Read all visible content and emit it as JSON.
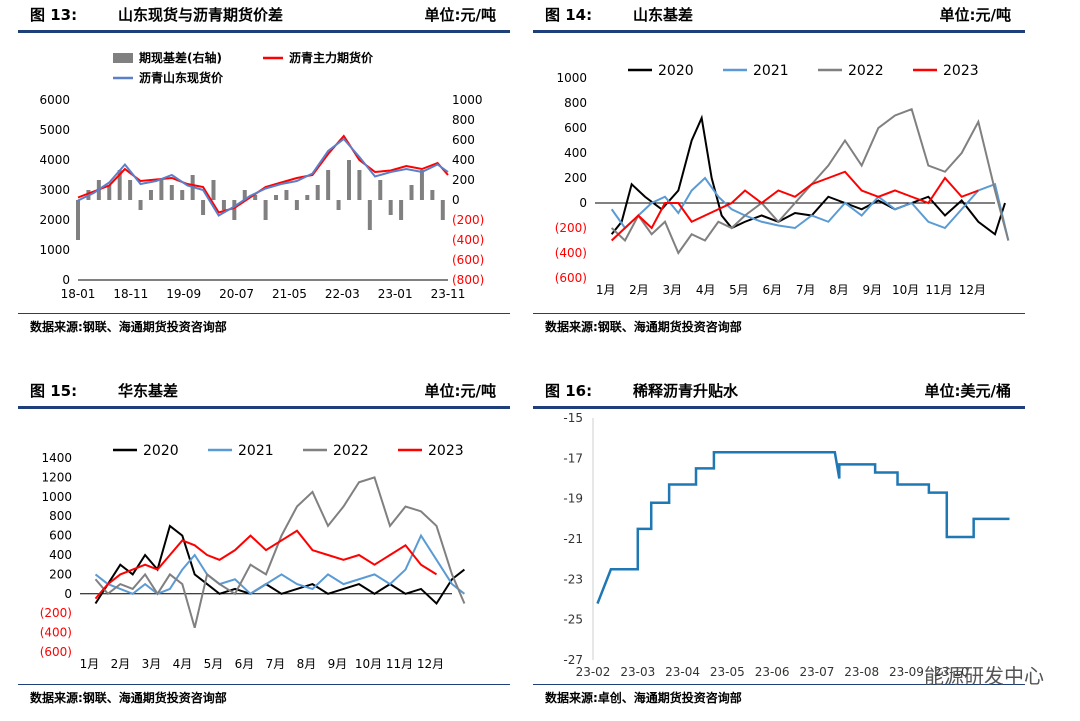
{
  "charts": [
    {
      "id": "c13",
      "fig": "图 13:",
      "title": "山东现货与沥青期货价差",
      "unit": "单位:元/吨",
      "source": "数据来源:钢联、海通期货投资咨询部",
      "chart_data": {
        "type": "line",
        "legend": [
          {
            "name": "期现基差(右轴)",
            "color": "#808080",
            "kind": "bar"
          },
          {
            "name": "沥青主力期货价",
            "color": "#ff0000",
            "kind": "line"
          },
          {
            "name": "沥青山东现货价",
            "color": "#5b7fc9",
            "kind": "line"
          }
        ],
        "x_ticks": [
          "18-01",
          "18-11",
          "19-09",
          "20-07",
          "21-05",
          "22-03",
          "23-01",
          "23-11"
        ],
        "yleft": {
          "min": 0,
          "max": 6000,
          "ticks": [
            "0",
            "1000",
            "2000",
            "3000",
            "4000",
            "5000",
            "6000"
          ]
        },
        "yright": {
          "min": -800,
          "max": 1000,
          "ticks": [
            "1000",
            "800",
            "600",
            "400",
            "200",
            "0",
            "(200)",
            "(400)",
            "(600)",
            "(800)"
          ]
        },
        "series": [
          {
            "name": "沥青主力期货价",
            "color": "#ff0000",
            "x": [
              0,
              3,
              6,
              9,
              12,
              15,
              18,
              21,
              24,
              27,
              30,
              33,
              36,
              39,
              42,
              45,
              48,
              51,
              54,
              57,
              60,
              63,
              66,
              69,
              71
            ],
            "y": [
              2750,
              2950,
              3150,
              3700,
              3300,
              3350,
              3400,
              3200,
              3100,
              2250,
              2400,
              2750,
              3100,
              3250,
              3400,
              3500,
              4200,
              4800,
              4000,
              3600,
              3650,
              3800,
              3700,
              3900,
              3500
            ]
          },
          {
            "name": "沥青山东现货价",
            "color": "#5b7fc9",
            "x": [
              0,
              3,
              6,
              9,
              12,
              15,
              18,
              21,
              24,
              27,
              30,
              33,
              36,
              39,
              42,
              45,
              48,
              51,
              54,
              57,
              60,
              63,
              66,
              69,
              71
            ],
            "y": [
              2650,
              2900,
              3250,
              3850,
              3200,
              3300,
              3500,
              3150,
              3000,
              2150,
              2450,
              2800,
              3050,
              3200,
              3300,
              3550,
              4300,
              4700,
              4100,
              3450,
              3600,
              3700,
              3600,
              3850,
              3600
            ]
          },
          {
            "name": "期现基差(右轴)",
            "color": "#808080",
            "x": [
              0,
              2,
              4,
              6,
              8,
              10,
              12,
              14,
              16,
              18,
              20,
              22,
              24,
              26,
              28,
              30,
              32,
              34,
              36,
              38,
              40,
              42,
              44,
              46,
              48,
              50,
              52,
              54,
              56,
              58,
              60,
              62,
              64,
              66,
              68,
              70
            ],
            "y": [
              -400,
              100,
              200,
              150,
              300,
              200,
              -100,
              100,
              200,
              150,
              100,
              250,
              -150,
              200,
              -100,
              -200,
              100,
              50,
              -200,
              50,
              100,
              -100,
              50,
              150,
              300,
              -100,
              400,
              300,
              -300,
              200,
              -150,
              -200,
              150,
              300,
              100,
              -200
            ]
          }
        ]
      }
    },
    {
      "id": "c14",
      "fig": "图 14:",
      "title": "山东基差",
      "unit": "单位:元/吨",
      "source": "数据来源:钢联、海通期货投资咨询部",
      "chart_data": {
        "type": "line",
        "x_ticks": [
          "1月",
          "2月",
          "3月",
          "4月",
          "5月",
          "6月",
          "7月",
          "8月",
          "9月",
          "10月",
          "11月",
          "12月"
        ],
        "ylim": [
          -600,
          1000
        ],
        "y_ticks": [
          "1000",
          "800",
          "600",
          "400",
          "200",
          "0",
          "(200)",
          "(400)",
          "(600)"
        ],
        "series": [
          {
            "name": "2020",
            "color": "#000000",
            "x": [
              0,
              0.3,
              0.6,
              1,
              1.5,
              2,
              2.4,
              2.7,
              3,
              3.3,
              3.6,
              4,
              4.5,
              5,
              5.5,
              6,
              6.5,
              7,
              7.5,
              8,
              8.5,
              9,
              9.5,
              10,
              10.5,
              11,
              11.5,
              11.8
            ],
            "y": [
              -250,
              -150,
              150,
              50,
              -50,
              100,
              500,
              680,
              200,
              -100,
              -200,
              -150,
              -100,
              -150,
              -80,
              -100,
              50,
              0,
              -50,
              20,
              -50,
              0,
              50,
              -100,
              20,
              -150,
              -250,
              0
            ]
          },
          {
            "name": "2021",
            "color": "#5b9bd5",
            "x": [
              0,
              0.4,
              0.8,
              1.2,
              1.6,
              2,
              2.4,
              2.8,
              3.2,
              3.6,
              4,
              4.5,
              5,
              5.5,
              6,
              6.5,
              7,
              7.5,
              8,
              8.5,
              9,
              9.5,
              10,
              10.5,
              11,
              11.5,
              11.9
            ],
            "y": [
              -50,
              -200,
              -100,
              0,
              50,
              -80,
              100,
              200,
              50,
              -50,
              -100,
              -150,
              -180,
              -200,
              -100,
              -150,
              0,
              -100,
              50,
              -50,
              0,
              -150,
              -200,
              -50,
              100,
              150,
              -300
            ]
          },
          {
            "name": "2022",
            "color": "#808080",
            "x": [
              0,
              0.4,
              0.8,
              1.2,
              1.6,
              2,
              2.4,
              2.8,
              3.2,
              3.6,
              4,
              4.5,
              5,
              5.5,
              6,
              6.5,
              7,
              7.5,
              8,
              8.5,
              9,
              9.5,
              10,
              10.5,
              11,
              11.5,
              11.9
            ],
            "y": [
              -200,
              -300,
              -100,
              -250,
              -150,
              -400,
              -250,
              -300,
              -150,
              -200,
              -100,
              0,
              -150,
              0,
              150,
              300,
              500,
              300,
              600,
              700,
              750,
              300,
              250,
              400,
              650,
              100,
              -300
            ]
          },
          {
            "name": "2023",
            "color": "#ff0000",
            "x": [
              0,
              0.4,
              0.8,
              1.2,
              1.6,
              2,
              2.4,
              2.8,
              3.2,
              3.6,
              4,
              4.5,
              5,
              5.5,
              6,
              6.5,
              7,
              7.5,
              8,
              8.5,
              9,
              9.5,
              10,
              10.5,
              11
            ],
            "y": [
              -300,
              -200,
              -100,
              -200,
              0,
              0,
              -150,
              -100,
              -50,
              0,
              100,
              0,
              100,
              50,
              150,
              200,
              250,
              100,
              50,
              100,
              50,
              0,
              200,
              50,
              100
            ]
          }
        ]
      }
    },
    {
      "id": "c15",
      "fig": "图 15:",
      "title": "华东基差",
      "unit": "单位:元/吨",
      "source": "数据来源:钢联、海通期货投资咨询部",
      "chart_data": {
        "type": "line",
        "x_ticks": [
          "1月",
          "2月",
          "3月",
          "4月",
          "5月",
          "6月",
          "7月",
          "8月",
          "9月",
          "10月",
          "11月",
          "12月"
        ],
        "ylim": [
          -600,
          1400
        ],
        "y_ticks": [
          "1400",
          "1200",
          "1000",
          "800",
          "600",
          "400",
          "200",
          "0",
          "(200)",
          "(400)",
          "(600)"
        ],
        "series": [
          {
            "name": "2020",
            "color": "#000000",
            "x": [
              0,
              0.4,
              0.8,
              1.2,
              1.6,
              2,
              2.4,
              2.8,
              3.2,
              3.6,
              4,
              4.5,
              5,
              5.5,
              6,
              6.5,
              7,
              7.5,
              8,
              8.5,
              9,
              9.5,
              10,
              10.5,
              11,
              11.5,
              11.9
            ],
            "y": [
              -100,
              100,
              300,
              200,
              400,
              250,
              700,
              600,
              200,
              100,
              0,
              50,
              0,
              100,
              0,
              50,
              100,
              0,
              50,
              100,
              0,
              100,
              0,
              50,
              -100,
              150,
              250
            ]
          },
          {
            "name": "2021",
            "color": "#5b9bd5",
            "x": [
              0,
              0.4,
              0.8,
              1.2,
              1.6,
              2,
              2.4,
              2.8,
              3.2,
              3.6,
              4,
              4.5,
              5,
              5.5,
              6,
              6.5,
              7,
              7.5,
              8,
              8.5,
              9,
              9.5,
              10,
              10.5,
              11,
              11.5,
              11.9
            ],
            "y": [
              200,
              100,
              50,
              0,
              100,
              0,
              50,
              250,
              400,
              200,
              100,
              150,
              0,
              100,
              200,
              100,
              50,
              200,
              100,
              150,
              200,
              100,
              250,
              600,
              350,
              100,
              0
            ]
          },
          {
            "name": "2022",
            "color": "#808080",
            "x": [
              0,
              0.4,
              0.8,
              1.2,
              1.6,
              2,
              2.4,
              2.8,
              3.2,
              3.6,
              4,
              4.5,
              5,
              5.5,
              6,
              6.5,
              7,
              7.5,
              8,
              8.5,
              9,
              9.5,
              10,
              10.5,
              11,
              11.5,
              11.9
            ],
            "y": [
              150,
              0,
              100,
              50,
              200,
              0,
              200,
              100,
              -350,
              200,
              100,
              0,
              300,
              200,
              600,
              900,
              1050,
              700,
              900,
              1150,
              1200,
              700,
              900,
              850,
              700,
              200,
              -100
            ]
          },
          {
            "name": "2023",
            "color": "#ff0000",
            "x": [
              0,
              0.4,
              0.8,
              1.2,
              1.6,
              2,
              2.4,
              2.8,
              3.2,
              3.6,
              4,
              4.5,
              5,
              5.5,
              6,
              6.5,
              7,
              7.5,
              8,
              8.5,
              9,
              9.5,
              10,
              10.5,
              11
            ],
            "y": [
              -50,
              100,
              200,
              250,
              300,
              250,
              400,
              550,
              500,
              400,
              350,
              450,
              600,
              450,
              550,
              650,
              450,
              400,
              350,
              400,
              300,
              400,
              500,
              300,
              200
            ]
          }
        ]
      }
    },
    {
      "id": "c16",
      "fig": "图 16:",
      "title": "稀释沥青升贴水",
      "unit": "单位:美元/桶",
      "source": "数据来源:卓创、海通期货投资咨询部",
      "chart_data": {
        "type": "line",
        "x_ticks": [
          "23-02",
          "23-03",
          "23-04",
          "23-05",
          "23-06",
          "23-07",
          "23-08",
          "23-09",
          "23-10"
        ],
        "ylim": [
          -27,
          -15
        ],
        "y_ticks": [
          "-15",
          "-17",
          "-19",
          "-21",
          "-23",
          "-25",
          "-27"
        ],
        "series": [
          {
            "name": "稀释沥青升贴水",
            "color": "#1f77b4",
            "x": [
              0.1,
              0.4,
              0.4,
              1,
              1,
              1.3,
              1.3,
              1.7,
              1.7,
              2.3,
              2.3,
              2.7,
              2.7,
              3.3,
              3.3,
              5.4,
              5.5,
              5.5,
              6.3,
              6.3,
              6.8,
              6.8,
              7.5,
              7.5,
              7.9,
              7.9,
              8.5,
              8.5,
              9.3
            ],
            "y": [
              -24.2,
              -22.5,
              -22.5,
              -22.5,
              -20.5,
              -20.5,
              -19.2,
              -19.2,
              -18.3,
              -18.3,
              -17.5,
              -17.5,
              -16.7,
              -16.7,
              -16.7,
              -16.7,
              -18,
              -17.3,
              -17.3,
              -17.7,
              -17.7,
              -18.3,
              -18.3,
              -18.7,
              -18.7,
              -20.9,
              -20.9,
              -20,
              -20
            ]
          }
        ]
      }
    }
  ],
  "watermark": "能源研发中心"
}
